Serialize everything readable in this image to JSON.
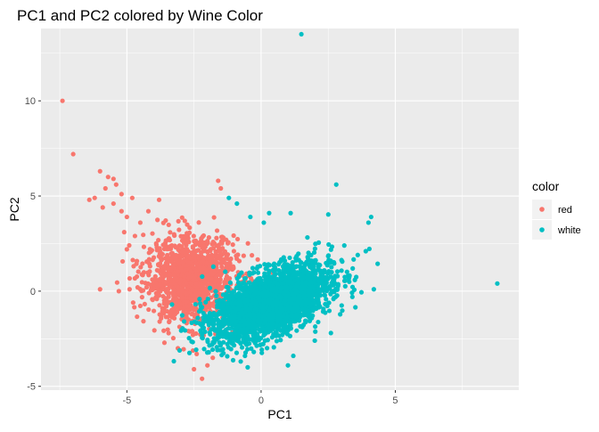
{
  "chart_data": {
    "type": "scatter",
    "title": "PC1 and PC2 colored by Wine Color",
    "xlabel": "PC1",
    "ylabel": "PC2",
    "xlim": [
      -8.2,
      9.6
    ],
    "ylim": [
      -5.2,
      13.8
    ],
    "x_ticks": [
      -5,
      0,
      5
    ],
    "y_ticks": [
      -5,
      0,
      5,
      10
    ],
    "grid": true,
    "legend_position": "right",
    "legend_title": "color",
    "series": [
      {
        "name": "red",
        "color": "#F8766D",
        "cloud": {
          "cx": -2.6,
          "cy": 0.6,
          "sx": 0.85,
          "sy": 1.1,
          "n": 1599
        },
        "outliers": [
          [
            -7.4,
            10.0
          ],
          [
            -7.0,
            7.2
          ],
          [
            -6.0,
            6.3
          ],
          [
            -5.7,
            6.0
          ],
          [
            -5.5,
            5.9
          ],
          [
            -5.4,
            5.6
          ],
          [
            -5.8,
            5.4
          ],
          [
            -5.2,
            5.1
          ],
          [
            -6.2,
            4.9
          ],
          [
            -5.5,
            4.6
          ],
          [
            -5.9,
            4.4
          ],
          [
            -6.4,
            4.8
          ],
          [
            -5.2,
            4.2
          ],
          [
            -4.8,
            4.9
          ],
          [
            -5.0,
            3.9
          ],
          [
            -4.5,
            3.6
          ],
          [
            -5.1,
            3.1
          ],
          [
            -4.7,
            2.9
          ],
          [
            -5.0,
            2.2
          ],
          [
            -6.0,
            0.1
          ],
          [
            -5.3,
            0.0
          ],
          [
            -4.9,
            0.1
          ],
          [
            -4.6,
            0.2
          ],
          [
            -4.2,
            4.2
          ],
          [
            -3.8,
            4.8
          ],
          [
            -1.6,
            5.8
          ],
          [
            -1.5,
            5.4
          ],
          [
            -2.2,
            -4.6
          ],
          [
            -2.5,
            -4.1
          ],
          [
            -2.0,
            -3.9
          ],
          [
            -1.8,
            -3.5
          ],
          [
            -2.4,
            -3.3
          ],
          [
            -3.1,
            -3.0
          ]
        ]
      },
      {
        "name": "white",
        "color": "#00BFC4",
        "cloud": {
          "cx": 0.4,
          "cy": -0.6,
          "sx": 1.1,
          "sy": 1.0,
          "n": 4898,
          "rho": 0.55
        },
        "outliers": [
          [
            1.5,
            13.5
          ],
          [
            8.8,
            0.4
          ],
          [
            2.8,
            5.6
          ],
          [
            4.2,
            0.1
          ],
          [
            4.1,
            3.9
          ],
          [
            4.0,
            3.6
          ],
          [
            3.9,
            2.1
          ],
          [
            3.6,
            1.9
          ],
          [
            -1.2,
            4.9
          ],
          [
            -0.9,
            4.6
          ],
          [
            -0.4,
            3.9
          ],
          [
            0.3,
            4.1
          ],
          [
            1.1,
            4.1
          ],
          [
            0.1,
            3.6
          ],
          [
            -0.5,
            -4.0
          ],
          [
            1.0,
            -3.9
          ],
          [
            1.2,
            -3.4
          ],
          [
            2.0,
            -2.6
          ],
          [
            2.6,
            -2.2
          ],
          [
            -0.6,
            -3.4
          ],
          [
            3.4,
            -0.3
          ],
          [
            3.1,
            2.4
          ]
        ]
      }
    ]
  }
}
